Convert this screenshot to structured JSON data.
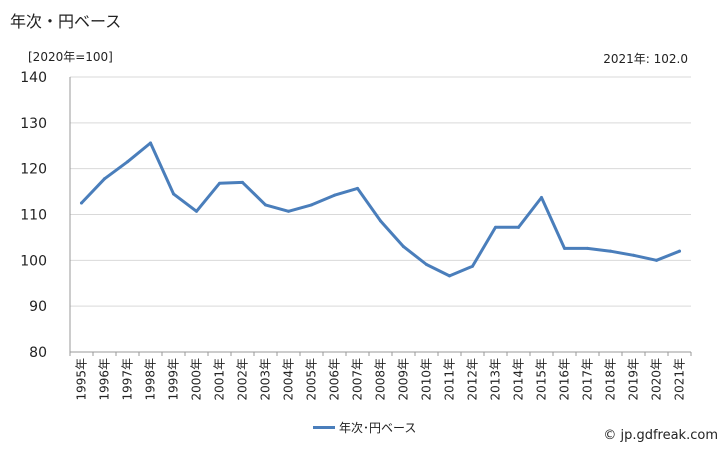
{
  "header": {
    "title": "年次・円ベース",
    "unit": "[2020年=100]",
    "latest": "2021年: 102.0"
  },
  "legend": {
    "label": "年次･円ベース"
  },
  "credit": "© jp.gdfreak.com",
  "colors": {
    "series": "#4a7ebb",
    "grid": "#d9d9d9",
    "axis": "#999999"
  },
  "chart_data": {
    "type": "line",
    "x": [
      "1995年",
      "1996年",
      "1997年",
      "1998年",
      "1999年",
      "2000年",
      "2001年",
      "2002年",
      "2003年",
      "2004年",
      "2005年",
      "2006年",
      "2007年",
      "2008年",
      "2009年",
      "2010年",
      "2011年",
      "2012年",
      "2013年",
      "2014年",
      "2015年",
      "2016年",
      "2017年",
      "2018年",
      "2019年",
      "2020年",
      "2021年"
    ],
    "series": [
      {
        "name": "年次･円ベース",
        "values": [
          112.5,
          117.8,
          121.5,
          125.6,
          114.5,
          110.7,
          116.8,
          117.0,
          112.1,
          110.7,
          112.1,
          114.2,
          115.7,
          108.6,
          103.0,
          99.1,
          96.6,
          98.7,
          107.2,
          107.2,
          113.7,
          102.6,
          102.6,
          102.0,
          101.1,
          100.0,
          102.0
        ]
      }
    ],
    "yticks": [
      80,
      90,
      100,
      110,
      120,
      130,
      140
    ],
    "ylim": [
      80,
      140
    ],
    "grid": true
  }
}
